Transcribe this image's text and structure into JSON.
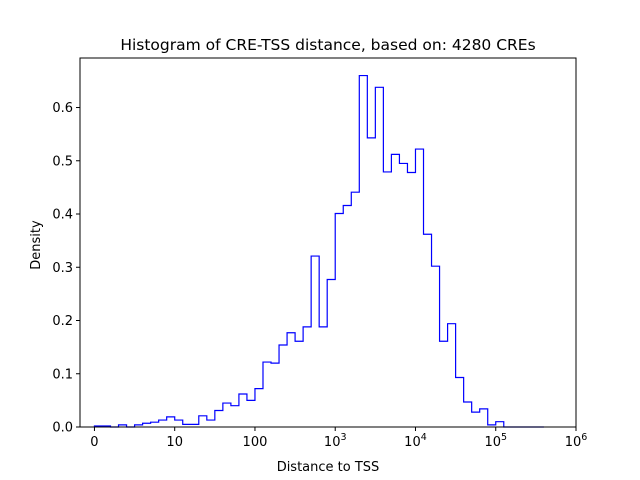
{
  "chart_data": {
    "type": "histogram-step",
    "title": "Histogram of CRE-TSS distance, based on: 4280 CREs",
    "xlabel": "Distance to TSS",
    "ylabel": "Density",
    "xscale": "symlog",
    "xlim": [
      -0.18,
      6.0
    ],
    "ylim": [
      0.0,
      0.693
    ],
    "xticks": [
      {
        "base": "0",
        "exp": ""
      },
      {
        "base": "10",
        "exp": ""
      },
      {
        "base": "100",
        "exp": ""
      },
      {
        "base": "10",
        "exp": "3"
      },
      {
        "base": "10",
        "exp": "4"
      },
      {
        "base": "10",
        "exp": "5"
      },
      {
        "base": "10",
        "exp": "6"
      }
    ],
    "yticks": [
      "0.0",
      "0.1",
      "0.2",
      "0.3",
      "0.4",
      "0.5",
      "0.6"
    ],
    "series": [
      {
        "color": "#0000ff",
        "bin_edges_log": [
          0,
          0.1,
          0.2,
          0.3,
          0.4,
          0.5,
          0.6,
          0.7,
          0.8,
          0.9,
          1.0,
          1.1,
          1.2,
          1.3,
          1.4,
          1.5,
          1.6,
          1.7,
          1.8,
          1.9,
          2.0,
          2.1,
          2.2,
          2.3,
          2.4,
          2.5,
          2.6,
          2.7,
          2.8,
          2.9,
          3.0,
          3.1,
          3.2,
          3.3,
          3.4,
          3.5,
          3.6,
          3.7,
          3.8,
          3.9,
          4.0,
          4.1,
          4.2,
          4.3,
          4.4,
          4.5,
          4.6,
          4.7,
          4.8,
          4.9,
          5.0,
          5.1,
          5.2,
          5.3,
          5.4,
          5.5,
          5.6
        ],
        "density": [
          0.002,
          0.002,
          0.0,
          0.004,
          0.0,
          0.004,
          0.007,
          0.009,
          0.013,
          0.019,
          0.013,
          0.005,
          0.005,
          0.021,
          0.013,
          0.031,
          0.045,
          0.04,
          0.062,
          0.05,
          0.072,
          0.122,
          0.12,
          0.154,
          0.177,
          0.161,
          0.188,
          0.321,
          0.188,
          0.277,
          0.401,
          0.416,
          0.441,
          0.66,
          0.543,
          0.638,
          0.479,
          0.512,
          0.495,
          0.478,
          0.522,
          0.362,
          0.302,
          0.161,
          0.194,
          0.093,
          0.047,
          0.028,
          0.034,
          0.004,
          0.01,
          0.0,
          0.0,
          0.0,
          0.0,
          0.0
        ]
      }
    ]
  }
}
